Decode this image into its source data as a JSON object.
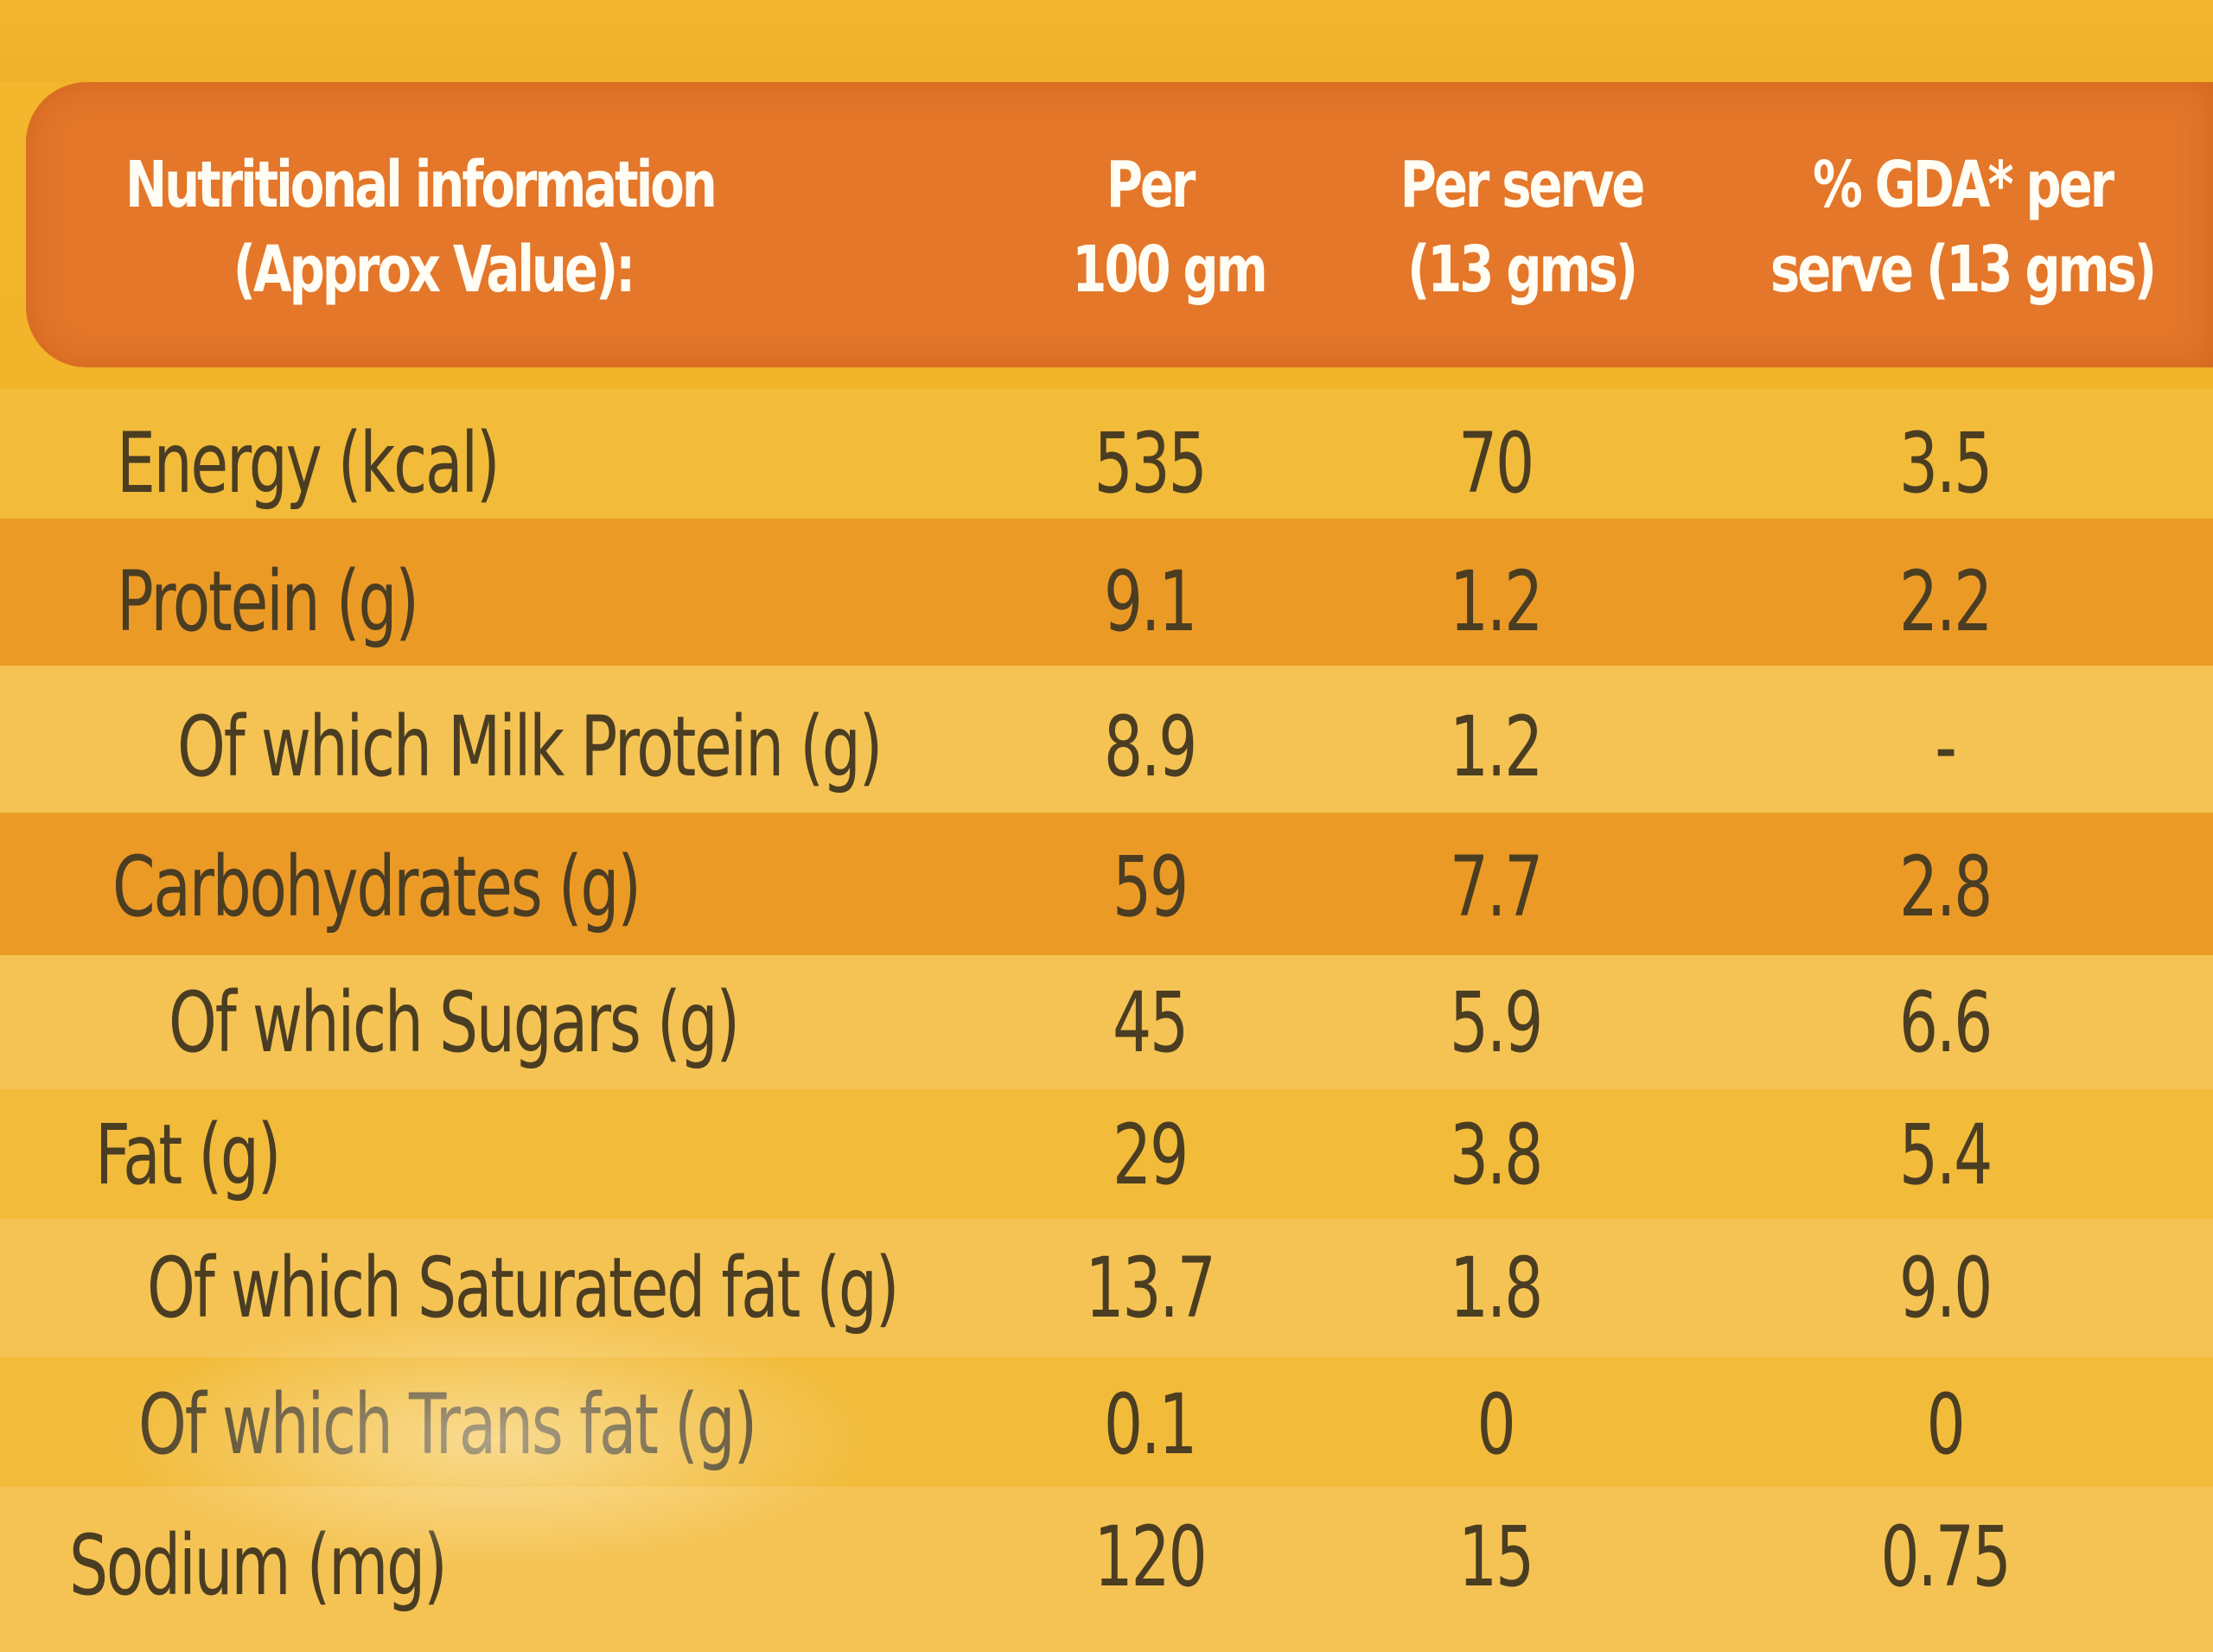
{
  "header": {
    "label_line1": "Nutritional information",
    "label_line2": "(Approx Value):",
    "col1_line1": "Per",
    "col1_line2": "100 gm",
    "col2_line1": "Per serve",
    "col2_line2": "(13 gms)",
    "col3_line1": "% GDA* per",
    "col3_line2": "serve (13 gms)"
  },
  "rows": [
    {
      "label": "Energy (kcal)",
      "per100": "535",
      "perserve": "70",
      "gda": "3.5"
    },
    {
      "label": "Protein (g)",
      "per100": "9.1",
      "perserve": "1.2",
      "gda": "2.2"
    },
    {
      "label": "Of which Milk Protein (g)",
      "per100": "8.9",
      "perserve": "1.2",
      "gda": "-"
    },
    {
      "label": "Carbohydrates (g)",
      "per100": "59",
      "perserve": "7.7",
      "gda": "2.8"
    },
    {
      "label": "Of which Sugars (g)",
      "per100": "45",
      "perserve": "5.9",
      "gda": "6.6"
    },
    {
      "label": "Fat (g)",
      "per100": "29",
      "perserve": "3.8",
      "gda": "5.4"
    },
    {
      "label": "Of which Saturated fat (g)",
      "per100": "13.7",
      "perserve": "1.8",
      "gda": "9.0"
    },
    {
      "label": "Of which Trans fat (g)",
      "per100": "0.1",
      "perserve": "0",
      "gda": "0"
    },
    {
      "label": "Sodium (mg)",
      "per100": "120",
      "perserve": "15",
      "gda": "0.75"
    }
  ]
}
